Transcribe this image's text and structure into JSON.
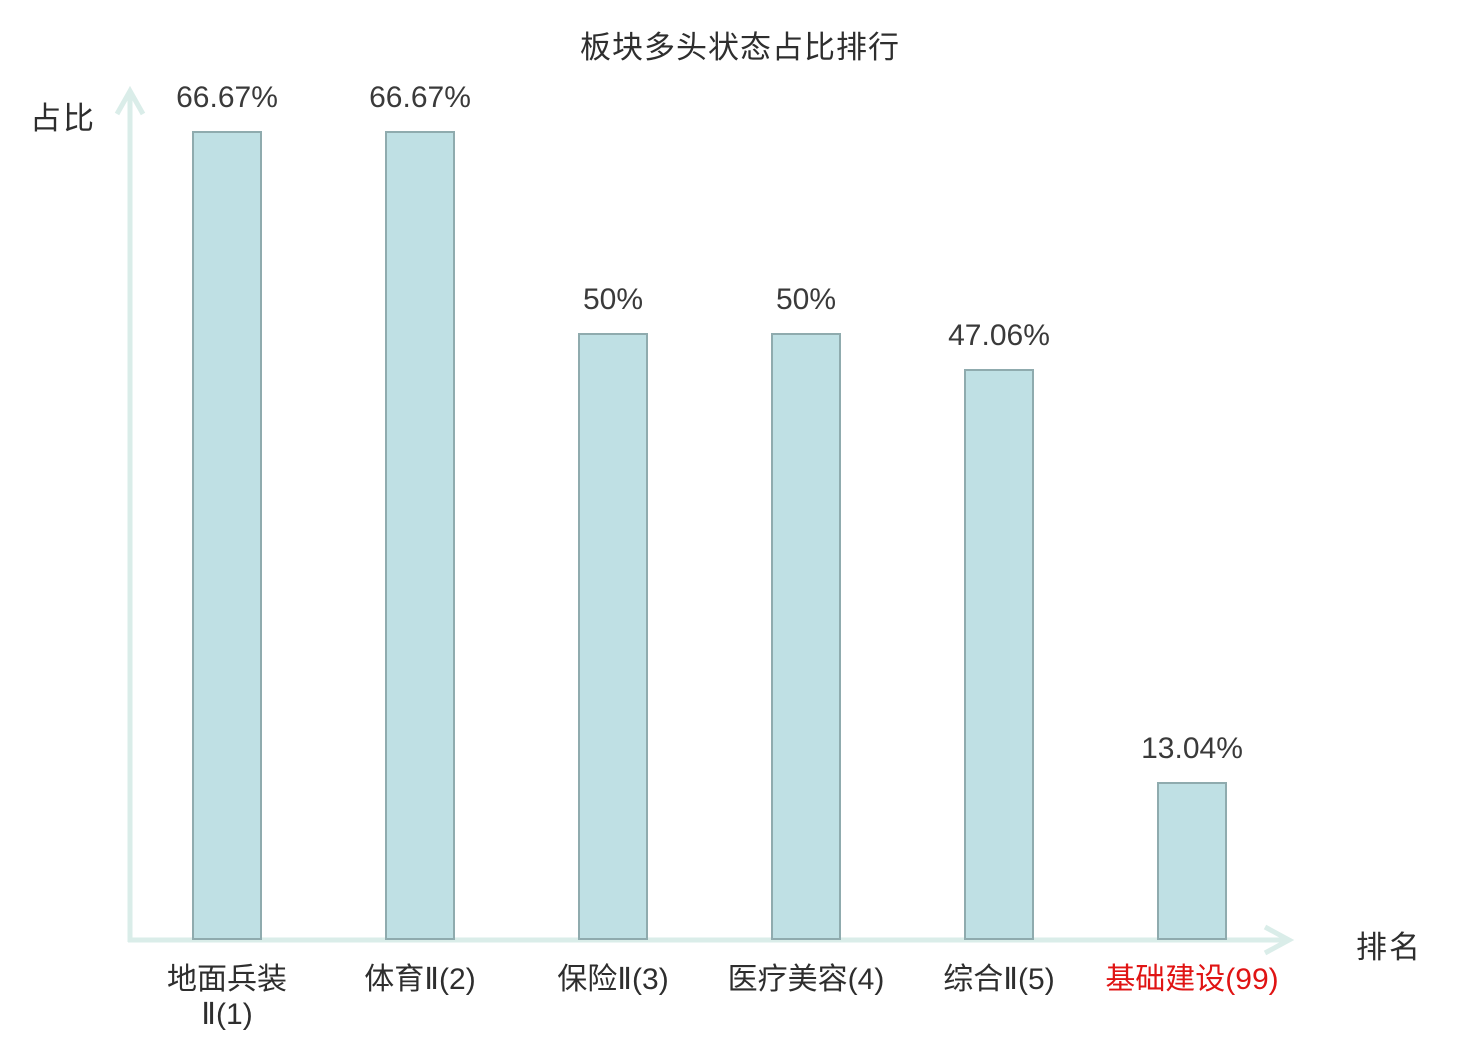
{
  "chart_data": {
    "type": "bar",
    "title": "板块多头状态占比排行",
    "xlabel": "排名",
    "ylabel": "占比",
    "categories": [
      "地面兵装\nⅡ(1)",
      "体育Ⅱ(2)",
      "保险Ⅱ(3)",
      "医疗美容(4)",
      "综合Ⅱ(5)",
      "基础建设(99)"
    ],
    "values": [
      66.67,
      66.67,
      50,
      50,
      47.06,
      13.04
    ],
    "value_labels": [
      "66.67%",
      "66.67%",
      "50%",
      "50%",
      "47.06%",
      "13.04%"
    ],
    "highlight_index": 5,
    "ylim": [
      0,
      70
    ],
    "grid": "off",
    "legend": "none",
    "colors": {
      "bar_fill": "#bfe0e4",
      "bar_border": "#8fabae",
      "axis": "#daede9",
      "text": "#2e2e2e",
      "value_text": "#3a3a3a",
      "highlight": "#e01414"
    }
  }
}
